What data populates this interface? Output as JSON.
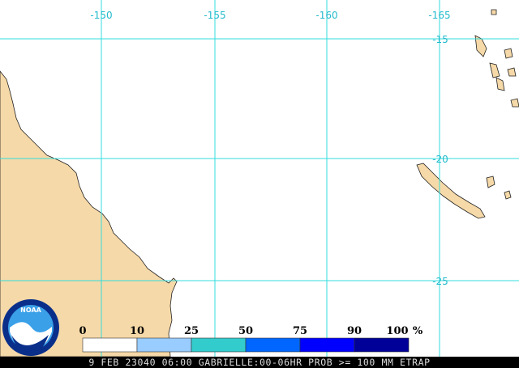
{
  "map": {
    "longitude_labels": [
      "-150",
      "-155",
      "-160",
      "-165"
    ],
    "latitude_labels": [
      "-15",
      "-20",
      "-25"
    ],
    "legend": {
      "labels": [
        "0",
        "10",
        "25",
        "50",
        "75",
        "90",
        "100"
      ],
      "unit": "%",
      "colors": [
        "#ffffff",
        "#99ccff",
        "#33cccc",
        "#0066ff",
        "#0000ff",
        "#000099"
      ]
    },
    "logo": "NOAA",
    "footer": "9 FEB 23040 06:00 GABRIELLE:00-06HR PROB >= 100 MM ETRAP"
  }
}
